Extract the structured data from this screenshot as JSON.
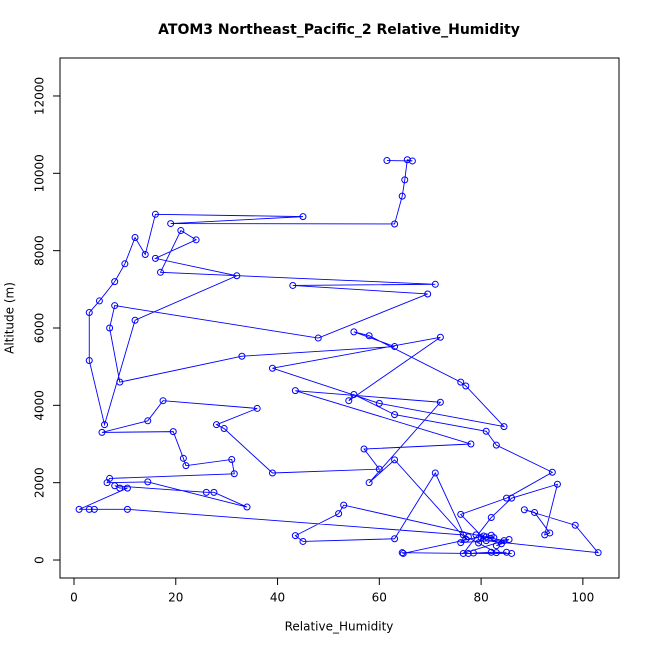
{
  "chart_data": {
    "type": "line",
    "title": "ATOM3 Northeast_Pacific_2 Relative_Humidity",
    "x_label": "Relative_Humidity",
    "y_label": "Altitude (m)",
    "color": "#0000ff",
    "marker": "circle",
    "xlim": [
      -2.75,
      107.1
    ],
    "ylim": [
      -465,
      12982
    ],
    "xticks": [
      0,
      20,
      40,
      60,
      80,
      100
    ],
    "yticks": [
      0,
      2000,
      4000,
      6000,
      8000,
      10000,
      12000
    ],
    "x": [
      61.5,
      66.5,
      65.5,
      65,
      64.5,
      63,
      19,
      45,
      16,
      14,
      12,
      10,
      8,
      5,
      3,
      3,
      6,
      12,
      32,
      16,
      24,
      21,
      17,
      71,
      43,
      69.5,
      48,
      8,
      7,
      9,
      33,
      63,
      55,
      58,
      76,
      77,
      84.5,
      60,
      39,
      72,
      54,
      55,
      63,
      81,
      83,
      94,
      85,
      76,
      81,
      103,
      98.5,
      88.5,
      90.5,
      93.5,
      92.5,
      95,
      86,
      82,
      76.5,
      84.5,
      79,
      53,
      52,
      43.5,
      45,
      63,
      71,
      77,
      63,
      58,
      72,
      43.5,
      78,
      57,
      60,
      39,
      29.5,
      28,
      36,
      17.5,
      14.5,
      5.5,
      19.5,
      21.5,
      22,
      31,
      31.5,
      7,
      6.5,
      14.5,
      34,
      27.5,
      26,
      8,
      9,
      10.5,
      1,
      4,
      3,
      10.5,
      76.5,
      83,
      85,
      82,
      78.5,
      86,
      77.5,
      64.5,
      64.7,
      80.5,
      79.5,
      80,
      82,
      82.5,
      81,
      84,
      83,
      85.5,
      76,
      77.5
    ],
    "y": [
      10330,
      10320,
      10350,
      9830,
      9410,
      8690,
      8700,
      8880,
      8940,
      7900,
      8340,
      7660,
      7200,
      6700,
      6400,
      5160,
      3500,
      6200,
      7350,
      7800,
      8280,
      8520,
      7440,
      7130,
      7100,
      6880,
      5740,
      6580,
      6000,
      4600,
      5270,
      5520,
      5900,
      5800,
      4600,
      4500,
      3450,
      4050,
      4960,
      5760,
      4120,
      4280,
      3760,
      3330,
      2970,
      2270,
      1600,
      1180,
      500,
      190,
      900,
      1300,
      1230,
      700,
      650,
      1960,
      1600,
      1100,
      170,
      500,
      650,
      1420,
      1200,
      630,
      480,
      550,
      2250,
      540,
      2590,
      2000,
      4080,
      4380,
      3000,
      2870,
      2350,
      2250,
      3400,
      3500,
      3920,
      4120,
      3600,
      3300,
      3320,
      2630,
      2440,
      2600,
      2230,
      2110,
      2000,
      2020,
      1370,
      1750,
      1750,
      1920,
      1860,
      1860,
      1310,
      1310,
      1310,
      1310,
      650,
      190,
      200,
      200,
      180,
      170,
      170,
      190,
      170,
      620,
      440,
      580,
      640,
      580,
      600,
      420,
      370,
      530,
      450,
      600
    ]
  }
}
